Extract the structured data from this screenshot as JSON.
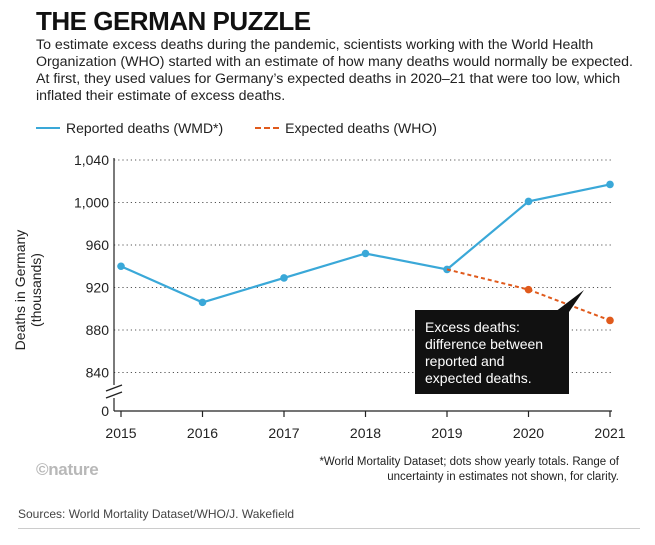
{
  "header": {
    "title": "THE GERMAN PUZZLE",
    "subtitle": "To estimate excess deaths during the pandemic, scientists working with the World Health Organization (WHO) started with an estimate of how many deaths would normally be expected. At first, they used values for Germany’s expected deaths in 2020–21 that were too low, which inflated their estimate of excess deaths."
  },
  "legend": {
    "reported": "Reported deaths (WMD*)",
    "expected": "Expected deaths (WHO)"
  },
  "annotation": "Excess deaths: difference between reported and expected deaths.",
  "footer": {
    "logo": "©nature",
    "footnote": "*World Mortality Dataset; dots show yearly totals. Range of uncertainty in estimates not shown, for clarity.",
    "sources": "Sources: World Mortality Dataset/WHO/J. Wakefield"
  },
  "colors": {
    "reported": "#3aa8d8",
    "expected": "#e05a1c"
  },
  "chart_data": {
    "type": "line",
    "title": "THE GERMAN PUZZLE",
    "xlabel": "",
    "ylabel": "Deaths in Germany (thousands)",
    "categories": [
      "2015",
      "2016",
      "2017",
      "2018",
      "2019",
      "2020",
      "2021"
    ],
    "y_ticks": [
      "1,040",
      "1,000",
      "960",
      "920",
      "880",
      "840"
    ],
    "y_zero_label": "0",
    "ylim": [
      830,
      1040
    ],
    "axis_break": true,
    "grid": "dotted horizontal",
    "series": [
      {
        "name": "Reported deaths (WMD*)",
        "style": "solid",
        "x": [
          "2015",
          "2016",
          "2017",
          "2018",
          "2019",
          "2020",
          "2021"
        ],
        "values": [
          940,
          906,
          929,
          952,
          937,
          1001,
          1017
        ]
      },
      {
        "name": "Expected deaths (WHO)",
        "style": "dashed",
        "x": [
          "2019",
          "2020",
          "2021"
        ],
        "values": [
          937,
          918,
          889
        ]
      }
    ]
  }
}
